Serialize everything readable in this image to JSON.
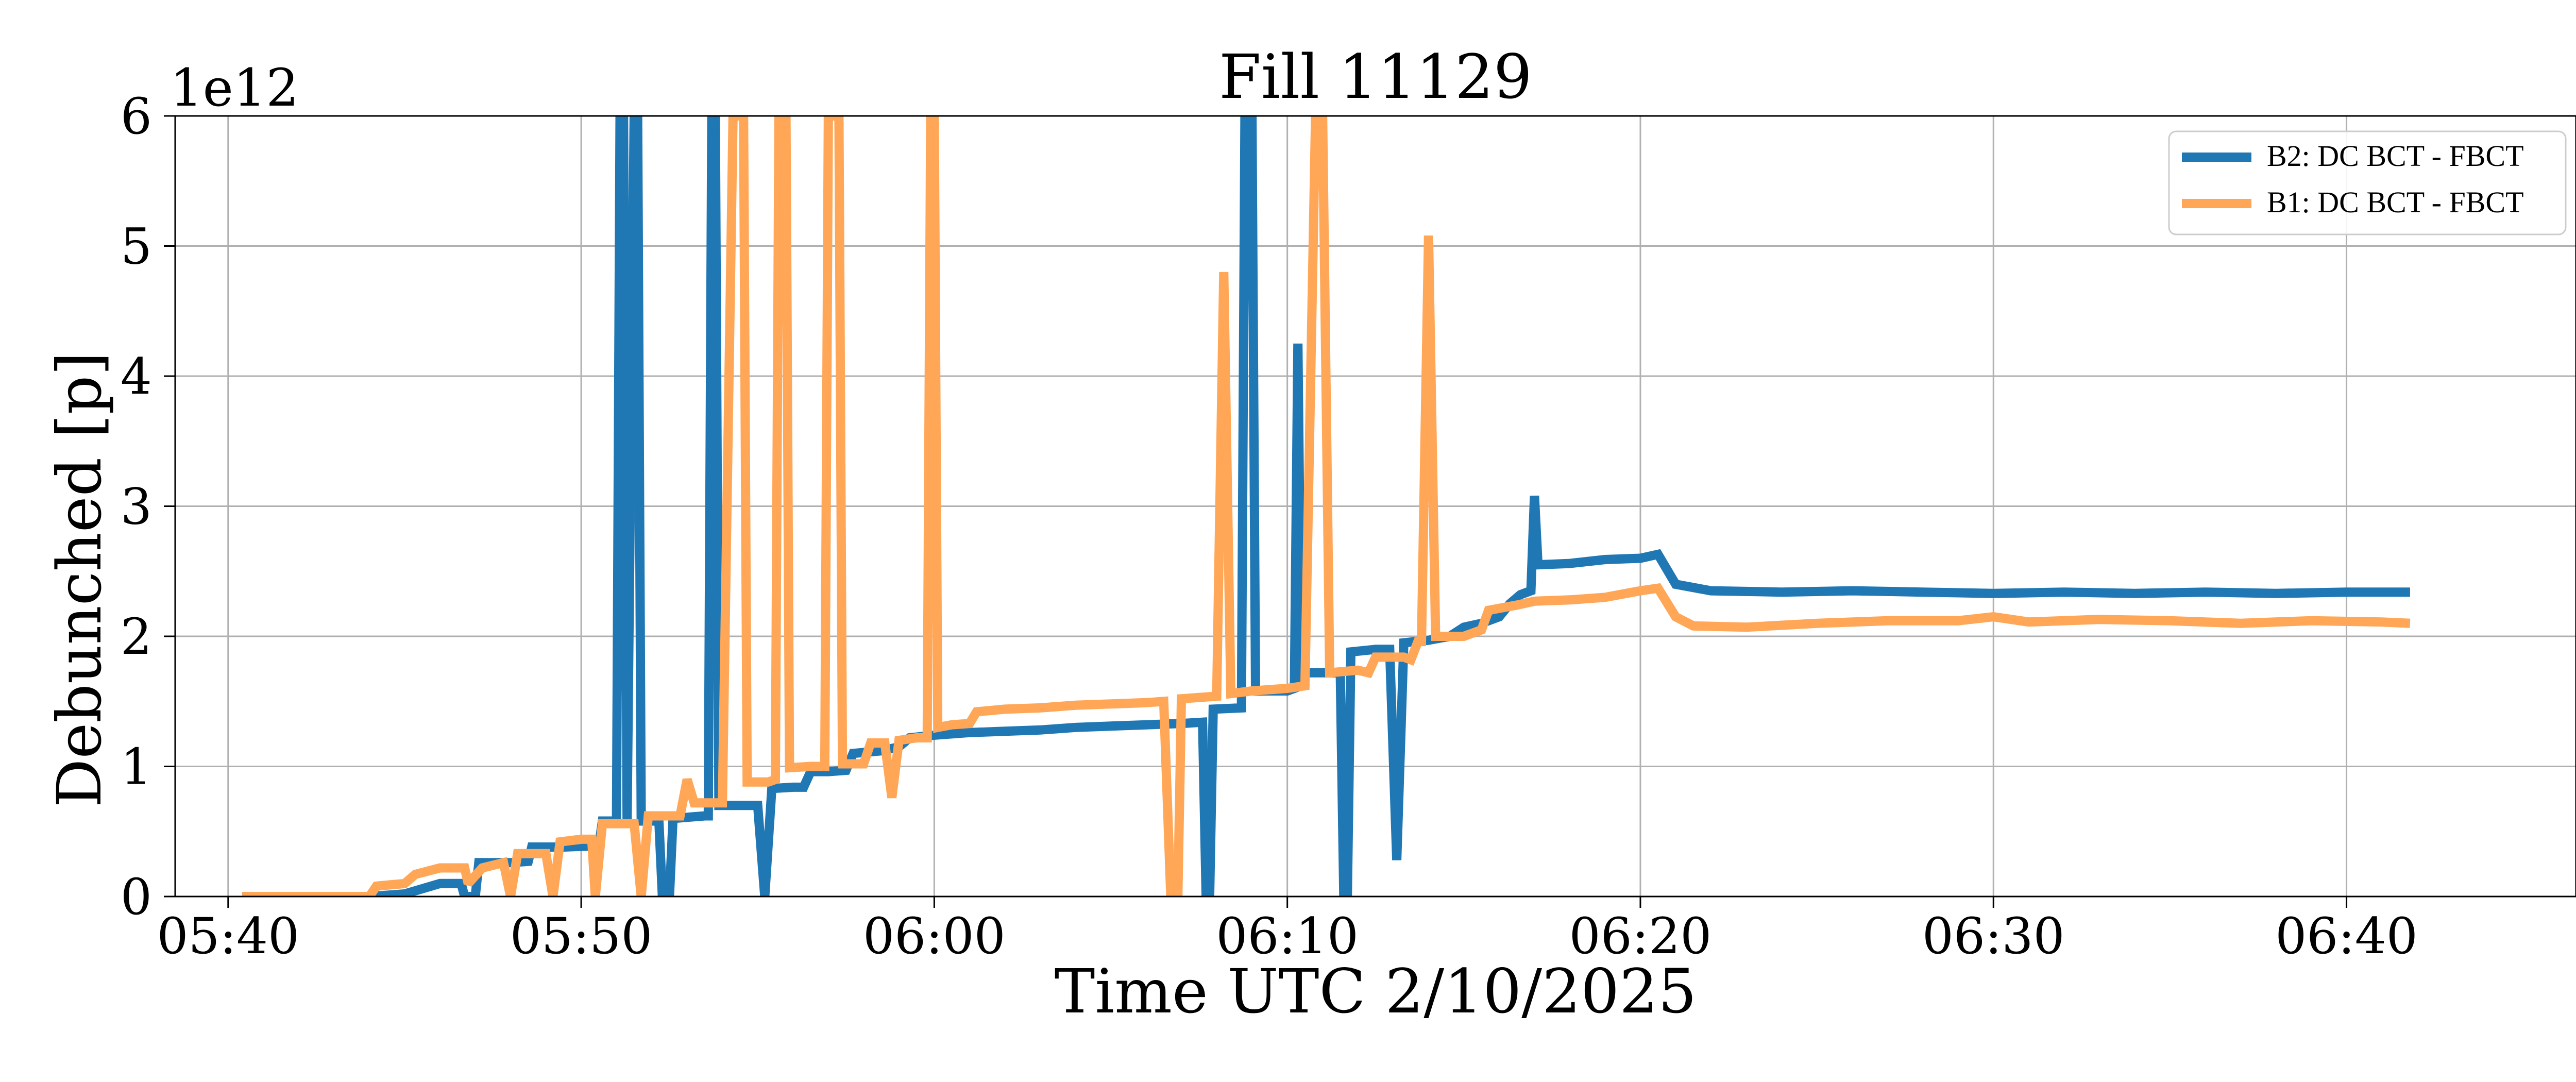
{
  "chart_data": {
    "type": "line",
    "title": "Fill 11129",
    "xlabel": "Time UTC 2/10/2025",
    "ylabel": "Debunched [p]",
    "y_multiplier_label": "1e12",
    "x_unit": "minutes after 05:30 UTC",
    "xlim": [
      8.5,
      76.5
    ],
    "ylim": [
      0,
      6
    ],
    "x_ticks": [
      {
        "value": 10,
        "label": "05:40"
      },
      {
        "value": 20,
        "label": "05:50"
      },
      {
        "value": 30,
        "label": "06:00"
      },
      {
        "value": 40,
        "label": "06:10"
      },
      {
        "value": 50,
        "label": "06:20"
      },
      {
        "value": 60,
        "label": "06:30"
      },
      {
        "value": 70,
        "label": "06:40"
      }
    ],
    "y_ticks": [
      {
        "value": 0,
        "label": "0"
      },
      {
        "value": 1,
        "label": "1"
      },
      {
        "value": 2,
        "label": "2"
      },
      {
        "value": 3,
        "label": "3"
      },
      {
        "value": 4,
        "label": "4"
      },
      {
        "value": 5,
        "label": "5"
      },
      {
        "value": 6,
        "label": "6"
      }
    ],
    "grid": true,
    "legend_position": "top-right",
    "series": [
      {
        "name": "B2: DC BCT - FBCT",
        "color": "#1f77b4",
        "points": [
          [
            10.4,
            0.0
          ],
          [
            14.0,
            0.0
          ],
          [
            15.0,
            0.02
          ],
          [
            16.0,
            0.1
          ],
          [
            16.6,
            0.1
          ],
          [
            16.7,
            0.0
          ],
          [
            17.0,
            0.0
          ],
          [
            17.1,
            0.26
          ],
          [
            18.0,
            0.26
          ],
          [
            18.5,
            0.27
          ],
          [
            18.6,
            0.38
          ],
          [
            19.5,
            0.38
          ],
          [
            20.5,
            0.39
          ],
          [
            20.6,
            0.58
          ],
          [
            21.0,
            0.58
          ],
          [
            21.1,
            6.0
          ],
          [
            21.2,
            6.0
          ],
          [
            21.3,
            0.58
          ],
          [
            21.5,
            6.0
          ],
          [
            21.6,
            6.0
          ],
          [
            21.7,
            0.58
          ],
          [
            22.2,
            0.58
          ],
          [
            22.3,
            0.0
          ],
          [
            22.5,
            0.0
          ],
          [
            22.6,
            0.6
          ],
          [
            23.5,
            0.62
          ],
          [
            23.6,
            0.62
          ],
          [
            23.7,
            6.0
          ],
          [
            23.8,
            6.0
          ],
          [
            23.9,
            0.7
          ],
          [
            24.5,
            0.7
          ],
          [
            25.0,
            0.7
          ],
          [
            25.2,
            0.0
          ],
          [
            25.4,
            0.83
          ],
          [
            26.0,
            0.84
          ],
          [
            26.3,
            0.84
          ],
          [
            26.5,
            0.96
          ],
          [
            27.0,
            0.96
          ],
          [
            27.5,
            0.97
          ],
          [
            27.7,
            1.1
          ],
          [
            28.5,
            1.12
          ],
          [
            29.0,
            1.15
          ],
          [
            29.3,
            1.22
          ],
          [
            30.0,
            1.24
          ],
          [
            31.0,
            1.26
          ],
          [
            32.0,
            1.27
          ],
          [
            33.0,
            1.28
          ],
          [
            34.0,
            1.3
          ],
          [
            35.0,
            1.31
          ],
          [
            36.0,
            1.32
          ],
          [
            37.0,
            1.33
          ],
          [
            37.6,
            1.34
          ],
          [
            37.7,
            0.0
          ],
          [
            37.8,
            0.0
          ],
          [
            37.9,
            1.44
          ],
          [
            38.7,
            1.45
          ],
          [
            38.8,
            6.0
          ],
          [
            39.0,
            6.0
          ],
          [
            39.1,
            1.58
          ],
          [
            40.0,
            1.58
          ],
          [
            40.2,
            1.6
          ],
          [
            40.3,
            4.25
          ],
          [
            40.4,
            1.6
          ],
          [
            40.5,
            1.72
          ],
          [
            41.5,
            1.72
          ],
          [
            41.6,
            0.0
          ],
          [
            41.7,
            0.0
          ],
          [
            41.8,
            1.88
          ],
          [
            42.5,
            1.9
          ],
          [
            42.9,
            1.9
          ],
          [
            43.1,
            0.28
          ],
          [
            43.3,
            1.95
          ],
          [
            44.0,
            1.97
          ],
          [
            44.6,
            2.0
          ],
          [
            45.0,
            2.07
          ],
          [
            45.5,
            2.1
          ],
          [
            46.0,
            2.15
          ],
          [
            46.3,
            2.25
          ],
          [
            46.6,
            2.32
          ],
          [
            46.9,
            2.35
          ],
          [
            47.0,
            3.08
          ],
          [
            47.1,
            2.55
          ],
          [
            48.0,
            2.56
          ],
          [
            49.0,
            2.59
          ],
          [
            50.0,
            2.6
          ],
          [
            50.5,
            2.63
          ],
          [
            51.0,
            2.4
          ],
          [
            52.0,
            2.35
          ],
          [
            54.0,
            2.34
          ],
          [
            56.0,
            2.35
          ],
          [
            58.0,
            2.34
          ],
          [
            60.0,
            2.33
          ],
          [
            62.0,
            2.34
          ],
          [
            64.0,
            2.33
          ],
          [
            66.0,
            2.34
          ],
          [
            68.0,
            2.33
          ],
          [
            70.0,
            2.34
          ],
          [
            71.8,
            2.34
          ]
        ]
      },
      {
        "name": "B1: DC BCT - FBCT",
        "color": "#ffa657",
        "points": [
          [
            10.4,
            0.0
          ],
          [
            14.0,
            0.0
          ],
          [
            14.2,
            0.08
          ],
          [
            15.0,
            0.1
          ],
          [
            15.3,
            0.17
          ],
          [
            16.0,
            0.22
          ],
          [
            16.7,
            0.22
          ],
          [
            16.8,
            0.1
          ],
          [
            17.2,
            0.22
          ],
          [
            17.8,
            0.26
          ],
          [
            18.0,
            0.0
          ],
          [
            18.2,
            0.33
          ],
          [
            19.0,
            0.33
          ],
          [
            19.2,
            0.0
          ],
          [
            19.4,
            0.42
          ],
          [
            20.0,
            0.44
          ],
          [
            20.3,
            0.44
          ],
          [
            20.4,
            0.0
          ],
          [
            20.6,
            0.56
          ],
          [
            21.5,
            0.56
          ],
          [
            21.7,
            0.0
          ],
          [
            21.9,
            0.62
          ],
          [
            22.5,
            0.62
          ],
          [
            22.8,
            0.62
          ],
          [
            23.0,
            0.9
          ],
          [
            23.2,
            0.72
          ],
          [
            24.0,
            0.72
          ],
          [
            24.3,
            6.0
          ],
          [
            24.6,
            6.0
          ],
          [
            24.7,
            0.88
          ],
          [
            25.3,
            0.88
          ],
          [
            25.5,
            0.9
          ],
          [
            25.6,
            6.0
          ],
          [
            25.8,
            6.0
          ],
          [
            25.9,
            0.99
          ],
          [
            26.5,
            1.0
          ],
          [
            26.9,
            1.0
          ],
          [
            27.0,
            6.0
          ],
          [
            27.3,
            6.0
          ],
          [
            27.4,
            1.02
          ],
          [
            28.0,
            1.02
          ],
          [
            28.2,
            1.18
          ],
          [
            28.6,
            1.18
          ],
          [
            28.8,
            0.76
          ],
          [
            29.0,
            1.2
          ],
          [
            29.5,
            1.22
          ],
          [
            29.8,
            1.22
          ],
          [
            29.9,
            6.0
          ],
          [
            30.0,
            6.0
          ],
          [
            30.1,
            1.3
          ],
          [
            30.5,
            1.32
          ],
          [
            31.0,
            1.33
          ],
          [
            31.2,
            1.42
          ],
          [
            32.0,
            1.44
          ],
          [
            33.0,
            1.45
          ],
          [
            34.0,
            1.47
          ],
          [
            35.0,
            1.48
          ],
          [
            36.0,
            1.49
          ],
          [
            36.5,
            1.5
          ],
          [
            36.7,
            0.0
          ],
          [
            36.9,
            0.0
          ],
          [
            37.0,
            1.52
          ],
          [
            38.0,
            1.54
          ],
          [
            38.2,
            4.8
          ],
          [
            38.4,
            1.56
          ],
          [
            39.0,
            1.58
          ],
          [
            40.0,
            1.6
          ],
          [
            40.5,
            1.62
          ],
          [
            40.8,
            6.0
          ],
          [
            41.0,
            6.0
          ],
          [
            41.2,
            1.72
          ],
          [
            42.0,
            1.74
          ],
          [
            42.3,
            1.72
          ],
          [
            42.5,
            1.84
          ],
          [
            43.0,
            1.84
          ],
          [
            43.3,
            1.84
          ],
          [
            43.5,
            1.82
          ],
          [
            43.7,
            1.96
          ],
          [
            43.8,
            1.96
          ],
          [
            44.0,
            5.08
          ],
          [
            44.2,
            2.0
          ],
          [
            45.0,
            2.0
          ],
          [
            45.5,
            2.05
          ],
          [
            45.7,
            2.2
          ],
          [
            46.5,
            2.24
          ],
          [
            47.0,
            2.27
          ],
          [
            48.0,
            2.28
          ],
          [
            49.0,
            2.3
          ],
          [
            50.0,
            2.35
          ],
          [
            50.5,
            2.37
          ],
          [
            51.0,
            2.15
          ],
          [
            51.5,
            2.08
          ],
          [
            53.0,
            2.07
          ],
          [
            55.0,
            2.1
          ],
          [
            57.0,
            2.12
          ],
          [
            59.0,
            2.12
          ],
          [
            60.0,
            2.15
          ],
          [
            61.0,
            2.11
          ],
          [
            63.0,
            2.13
          ],
          [
            65.0,
            2.12
          ],
          [
            67.0,
            2.1
          ],
          [
            69.0,
            2.12
          ],
          [
            71.0,
            2.11
          ],
          [
            71.8,
            2.1
          ]
        ]
      }
    ]
  }
}
